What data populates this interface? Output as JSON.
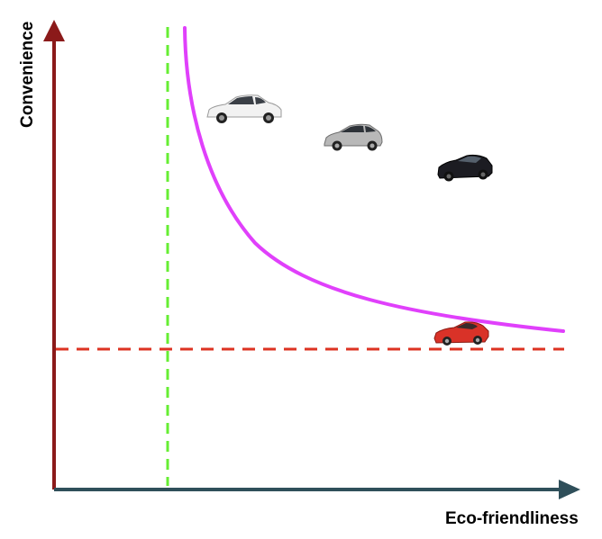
{
  "axes": {
    "x_label": "Eco-friendliness",
    "y_label": "Convenience"
  },
  "colors": {
    "y_axis": "#8b1a1a",
    "x_axis": "#2f4f5a",
    "frontier_curve": "#e040fb",
    "threshold_vertical": "#66ee33",
    "threshold_horizontal": "#dd3322"
  },
  "cars": [
    {
      "icon": "white-sedan-icon",
      "body_color": "#f2f2f2"
    },
    {
      "icon": "silver-hatchback-icon",
      "body_color": "#b8b8b8"
    },
    {
      "icon": "black-sportscar-icon",
      "body_color": "#1c1c22"
    },
    {
      "icon": "red-coupe-icon",
      "body_color": "#d93228"
    }
  ]
}
